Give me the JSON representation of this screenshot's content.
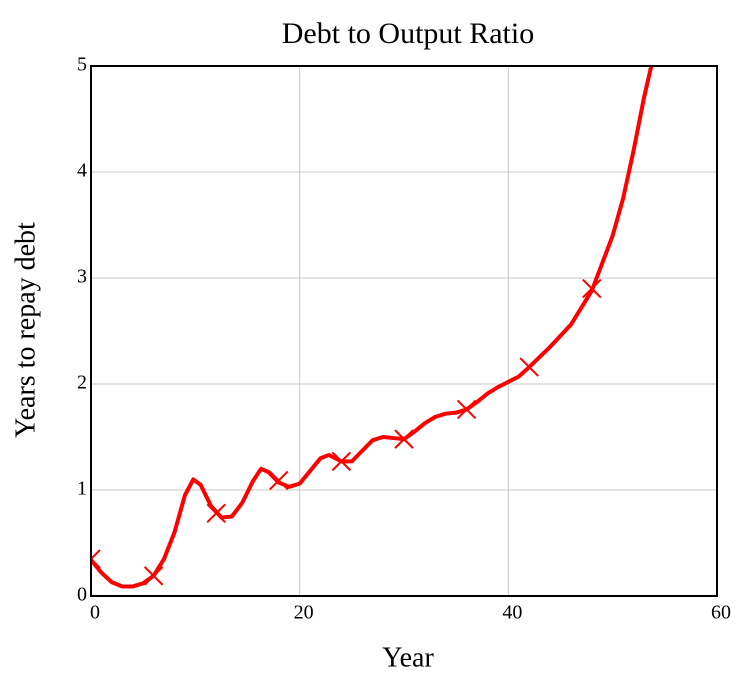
{
  "chart_data": {
    "type": "line",
    "title": "Debt to Output Ratio",
    "x_label": "Year",
    "y_label": "Years to repay debt",
    "xlim": [
      0,
      60
    ],
    "xticks": [
      0,
      20,
      40,
      60
    ],
    "ylim": [
      0,
      5
    ],
    "yticks": [
      0,
      1,
      2,
      3,
      4,
      5
    ],
    "grid": true,
    "series": [
      {
        "color": "#ff0000",
        "marker": "none",
        "x": [
          0,
          1,
          2,
          3,
          4,
          5,
          6,
          7,
          8,
          9,
          9.8,
          10.5,
          11.5,
          12.5,
          13.5,
          14.5,
          15.5,
          16.3,
          17,
          18,
          19,
          20,
          21,
          22,
          22.8,
          24,
          25,
          26,
          27,
          28,
          29,
          30,
          31,
          32,
          33,
          34,
          35,
          36,
          37,
          38,
          39,
          40,
          41,
          42,
          44,
          46,
          48,
          50,
          51,
          52,
          53,
          53.7
        ],
        "values": [
          0.34,
          0.22,
          0.13,
          0.09,
          0.09,
          0.12,
          0.19,
          0.35,
          0.6,
          0.95,
          1.1,
          1.05,
          0.85,
          0.74,
          0.75,
          0.88,
          1.08,
          1.2,
          1.17,
          1.07,
          1.03,
          1.06,
          1.18,
          1.3,
          1.33,
          1.27,
          1.27,
          1.37,
          1.47,
          1.5,
          1.49,
          1.48,
          1.55,
          1.63,
          1.69,
          1.72,
          1.73,
          1.76,
          1.83,
          1.91,
          1.97,
          2.02,
          2.07,
          2.16,
          2.35,
          2.56,
          2.88,
          3.4,
          3.75,
          4.2,
          4.7,
          5.0
        ]
      },
      {
        "color": "#ff0000",
        "marker": "x",
        "x": [
          0,
          6,
          12,
          18,
          24,
          30,
          36,
          42,
          48
        ],
        "values": [
          0.35,
          0.19,
          0.78,
          1.09,
          1.27,
          1.48,
          1.76,
          2.16,
          2.9
        ]
      }
    ]
  }
}
